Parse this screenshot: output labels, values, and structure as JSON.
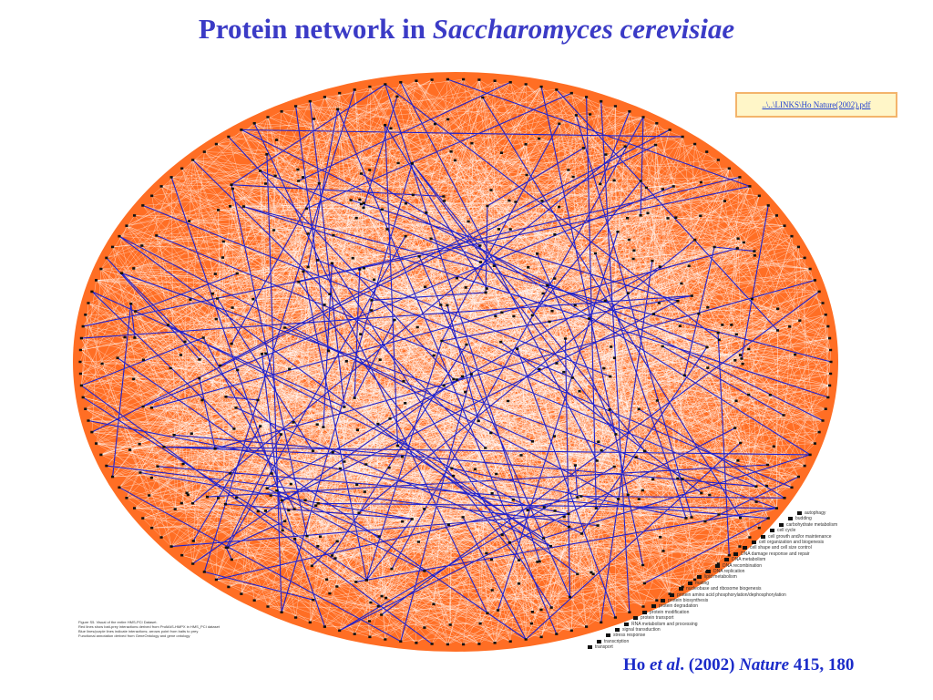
{
  "title": {
    "prefix": "Protein network in ",
    "italic": "Saccharomyces cerevisiae"
  },
  "link": {
    "text": "..\\..\\LINKS\\Ho Nature(2002).pdf"
  },
  "citation": {
    "author": "Ho ",
    "etal": "et al",
    "year": ". (2002) ",
    "journal": "Nature",
    "volume": " 415, 180"
  },
  "figure_caption": [
    "Figure S5. Visual of the entire HMS-PCI Dataset.",
    "Red lines show bait-prey interactions derived from ProMAS-HMPX in HMS_PCI dataset",
    "Blue lines/purple lines indicate interactions; arrows point from baits to prey",
    "Functional annotation derived from GeneOntology and gene ontology"
  ],
  "legend": [
    "autophagy",
    "budding",
    "carbohydrate metabolism",
    "cell cycle",
    "cell growth and/or maintenance",
    "cell organization and biogenesis",
    "cell shape and cell size control",
    "DNA damage response and repair",
    "DNA metabolism",
    "DNA recombination",
    "DNA replication",
    "lipid metabolism",
    "mating",
    "nucleobase and ribosome biogenesis",
    "protein amino acid phosphorylation/dephosphorylation",
    "protein biosynthesis",
    "protein degradation",
    "protein modification",
    "protein transport",
    "RNA metabolism and processing",
    "signal transduction",
    "stress response",
    "transcription",
    "transport"
  ],
  "colors": {
    "title": "#3b3bc6",
    "edges_primary": "#ff6a1f",
    "edges_secondary": "#2222cc",
    "nodes": "#111111",
    "link_box_bg": "#fff6c8",
    "link_box_border": "#f3b46b",
    "citation": "#1b2bc9"
  }
}
